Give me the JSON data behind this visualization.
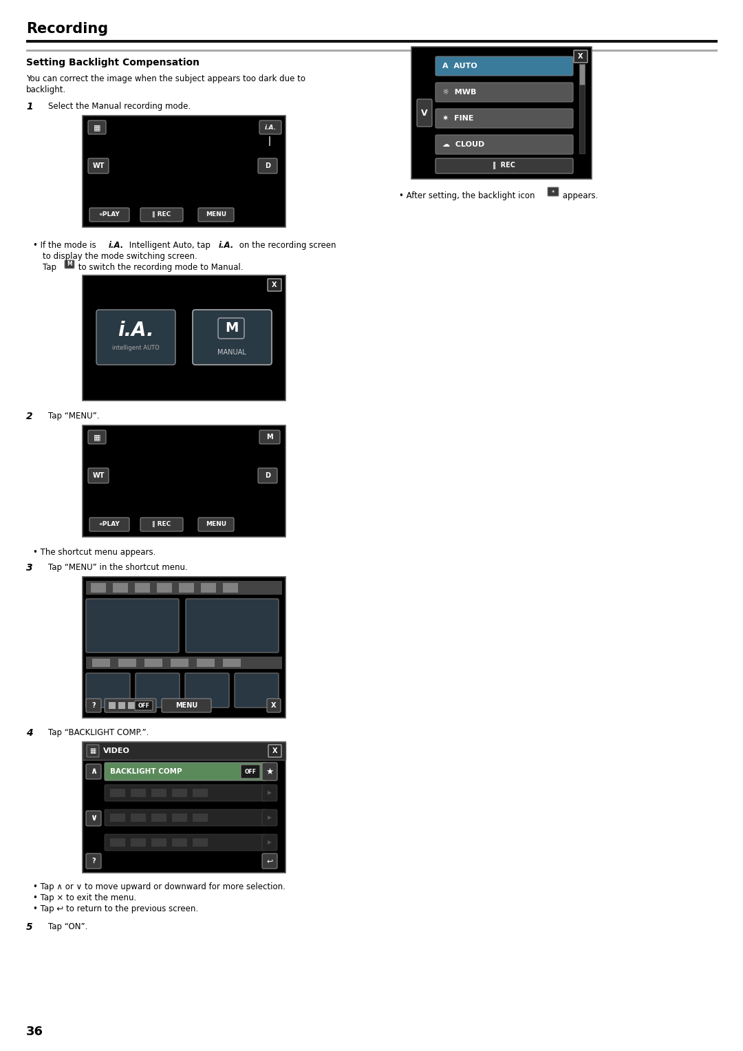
{
  "page_bg": "#ffffff",
  "page_number": "36",
  "section_title": "Recording",
  "subsection_title": "Setting Backlight Compensation",
  "intro_line1": "You can correct the image when the subject appears too dark due to",
  "intro_line2": "backlight.",
  "step1_text": "Select the Manual recording mode.",
  "step2_text": "Tap “MENU”.",
  "step3_text": "Tap “MENU” in the shortcut menu.",
  "step4_text": "Tap “BACKLIGHT COMP.”.",
  "step5_text": "Tap “ON”.",
  "bullet_ia1": "If the mode is ",
  "bullet_ia2": "i.A.",
  "bullet_ia3": " Intelligent Auto, tap ",
  "bullet_ia4": "i.A.",
  "bullet_ia5": " on the recording screen",
  "bullet_ia6": "to display the mode switching screen.",
  "bullet_ia7": "Tap ",
  "bullet_ia8": " to switch the recording mode to Manual.",
  "bullet_shortcut": "The shortcut menu appears.",
  "bullet_after": "After setting, the backlight icon ",
  "bullet_after2": " appears.",
  "bullet_tap1": "Tap ∧ or ∨ to move upward or downward for more selection.",
  "bullet_tap2": "Tap × to exit the menu.",
  "bullet_tap3": "Tap ↩ to return to the previous screen.",
  "wb_menu_items": [
    "A  AUTO",
    "MWB",
    "FINE",
    "CLOUD"
  ],
  "section_title_size": 15,
  "subsection_title_size": 10,
  "body_text_size": 8.5,
  "step_num_size": 10,
  "screen_bg": "#000000",
  "btn_bg": "#444444",
  "btn_bg2": "#555555",
  "btn_border": "#888888",
  "highlight_bg": "#4a7a8a",
  "gray_bar": "#aaaaaa",
  "body_color": "#000000",
  "white": "#ffffff",
  "darkgray": "#333333",
  "midgray": "#666666",
  "lightgray": "#999999"
}
